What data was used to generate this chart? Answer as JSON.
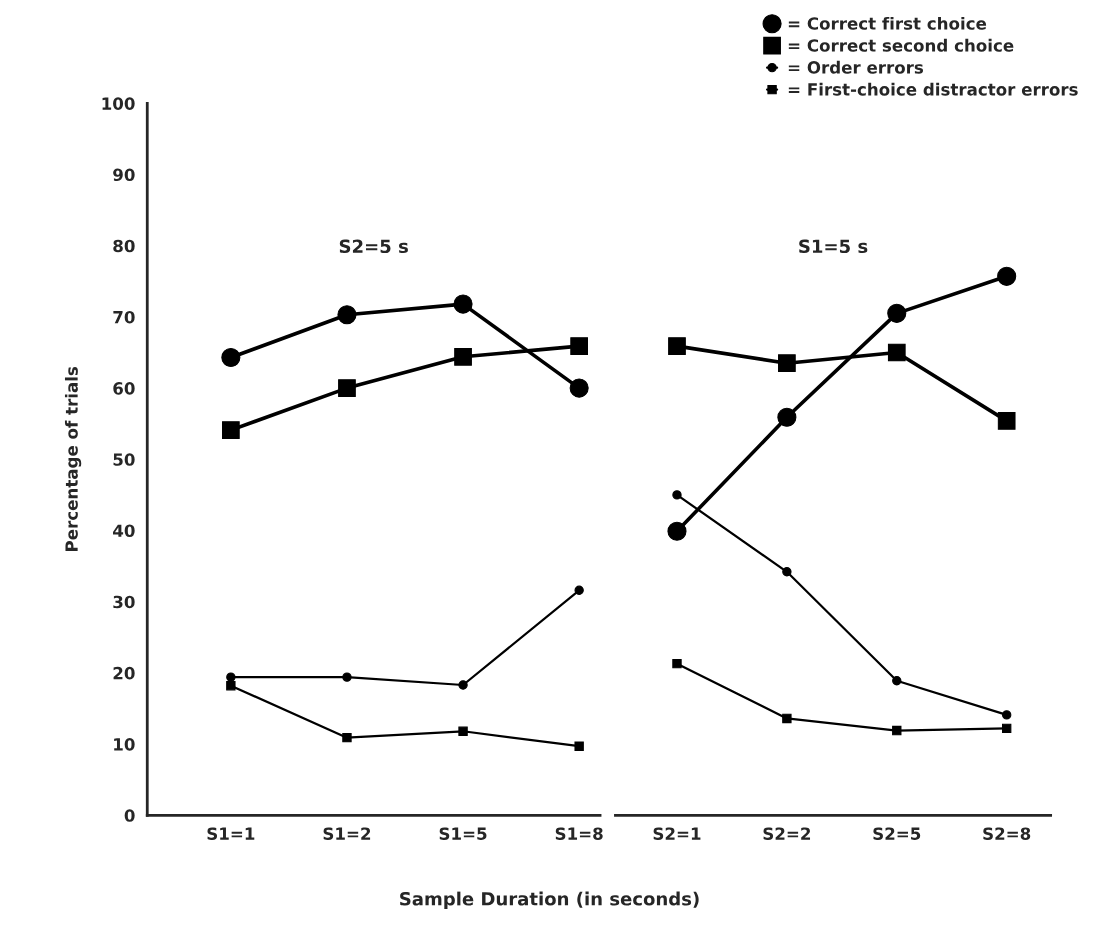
{
  "chart_data": [
    {
      "type": "line",
      "title": "S2=5 s",
      "ylabel": "Percentage of trials",
      "xlabel": "Sample Duration (in seconds)",
      "categories": [
        "S1=1",
        "S1=2",
        "S1=5",
        "S1=8"
      ],
      "ylim": [
        0,
        100
      ],
      "yticks": [
        0,
        10,
        20,
        30,
        40,
        50,
        60,
        70,
        80,
        90,
        100
      ],
      "grid": false,
      "legend": "top right",
      "series": [
        {
          "name": "= Correct first choice",
          "color": "#000000",
          "marker": "circle",
          "values": [
            64.3,
            70.3,
            71.8,
            60.0
          ]
        },
        {
          "name": "= Correct second choice",
          "color": "#000000",
          "marker": "square",
          "values": [
            54.1,
            60.0,
            64.4,
            65.9
          ]
        },
        {
          "name": "= Order errors",
          "color": "#000000",
          "marker": "circle",
          "values": [
            19.4,
            19.4,
            18.3,
            31.6
          ]
        },
        {
          "name": "= First-choice distractor errors",
          "color": "#000000",
          "marker": "square",
          "values": [
            18.2,
            10.9,
            11.8,
            9.7
          ]
        }
      ]
    },
    {
      "type": "line",
      "title": "S1=5 s",
      "categories": [
        "S2=1",
        "S2=2",
        "S2=5",
        "S2=8"
      ],
      "ylim": [
        0,
        100
      ],
      "tick_labels": "x",
      "grid": false,
      "series": [
        {
          "color": "#000000",
          "marker": "circle",
          "values": [
            39.9,
            55.9,
            70.5,
            75.7
          ]
        },
        {
          "color": "#000000",
          "marker": "square",
          "values": [
            65.9,
            63.5,
            65.0,
            55.4
          ]
        },
        {
          "color": "#000000",
          "marker": "circle",
          "values": [
            45.0,
            34.2,
            18.9,
            14.1
          ]
        },
        {
          "color": "#000000",
          "marker": "square",
          "values": [
            21.3,
            13.6,
            11.9,
            12.2
          ]
        }
      ]
    }
  ]
}
